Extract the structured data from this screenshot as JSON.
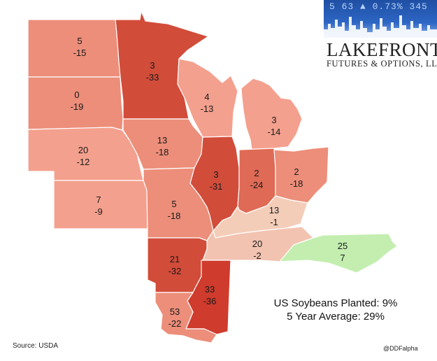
{
  "logo": {
    "ticker_text": "5 63 ▲ 0.73% 345",
    "name": "LAKEFRONT",
    "subtitle": "FUTURES & OPTIONS, LLC."
  },
  "stats": {
    "planted": "US Soybeans Planted: 9%",
    "average": "5 Year Average: 29%"
  },
  "source": "Source: USDA",
  "handle": "@DDFalpha",
  "colors": {
    "light_salmon": "#f4a08e",
    "salmon": "#ec8e7a",
    "medium_red": "#df6a55",
    "dark_red": "#d24c3a",
    "darkest_red": "#cf3b2c",
    "pale_peach": "#f4cdb9",
    "light_peach": "#f2c3b0",
    "green": "#c3eeb0"
  },
  "states": [
    {
      "id": "north-dakota",
      "line1": "5",
      "line2": "-15",
      "color": "salmon"
    },
    {
      "id": "minnesota",
      "line1": "3",
      "line2": "-33",
      "color": "dark_red"
    },
    {
      "id": "south-dakota",
      "line1": "0",
      "line2": "-19",
      "color": "salmon"
    },
    {
      "id": "wisconsin",
      "line1": "4",
      "line2": "-13",
      "color": "light_salmon"
    },
    {
      "id": "michigan",
      "line1": "3",
      "line2": "-14",
      "color": "light_salmon"
    },
    {
      "id": "nebraska",
      "line1": "20",
      "line2": "-12",
      "color": "light_salmon"
    },
    {
      "id": "iowa",
      "line1": "13",
      "line2": "-18",
      "color": "salmon"
    },
    {
      "id": "illinois",
      "line1": "3",
      "line2": "-31",
      "color": "dark_red"
    },
    {
      "id": "indiana",
      "line1": "2",
      "line2": "-24",
      "color": "medium_red"
    },
    {
      "id": "ohio",
      "line1": "2",
      "line2": "-18",
      "color": "salmon"
    },
    {
      "id": "kansas",
      "line1": "7",
      "line2": "-9",
      "color": "light_salmon"
    },
    {
      "id": "missouri",
      "line1": "5",
      "line2": "-18",
      "color": "salmon"
    },
    {
      "id": "kentucky",
      "line1": "13",
      "line2": "-1",
      "color": "pale_peach"
    },
    {
      "id": "tennessee",
      "line1": "20",
      "line2": "-2",
      "color": "light_peach"
    },
    {
      "id": "north-carolina",
      "line1": "25",
      "line2": "7",
      "color": "green"
    },
    {
      "id": "arkansas",
      "line1": "21",
      "line2": "-32",
      "color": "dark_red"
    },
    {
      "id": "mississippi",
      "line1": "33",
      "line2": "-36",
      "color": "darkest_red"
    },
    {
      "id": "louisiana",
      "line1": "53",
      "line2": "-22",
      "color": "salmon"
    }
  ]
}
